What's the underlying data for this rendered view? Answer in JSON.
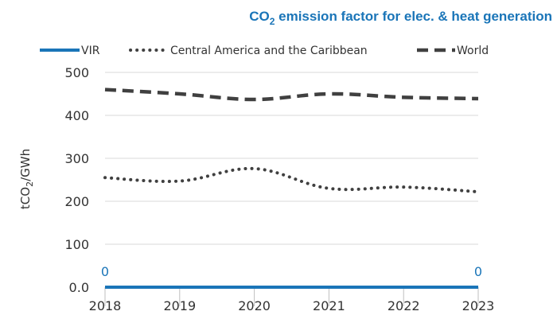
{
  "chart_data": {
    "type": "line",
    "title": "CO2 emission factor for elec. & heat generation",
    "title_main": "CO",
    "title_sub": "2",
    "title_rest": " emission factor for elec. & heat generation",
    "ylabel_main": "tCO",
    "ylabel_sub": "2",
    "ylabel_rest": "/GWh",
    "x_ticks": [
      "2018",
      "2019",
      "2020",
      "2021",
      "2022",
      "2023"
    ],
    "y_ticks": [
      "0.0",
      "100",
      "200",
      "300",
      "400",
      "500"
    ],
    "y_tick_values": [
      0,
      100,
      200,
      300,
      400,
      500
    ],
    "ylim": [
      0,
      500
    ],
    "xlim": [
      2018,
      2023
    ],
    "grid": true,
    "legend_position": "top",
    "series": [
      {
        "name": "VIR",
        "style": "solid",
        "color": "#1a75b8",
        "x": [
          2018,
          2019,
          2020,
          2021,
          2022,
          2023
        ],
        "values": [
          0,
          0,
          0,
          0,
          0,
          0
        ],
        "data_labels": [
          {
            "x": 2018,
            "text": "0"
          },
          {
            "x": 2023,
            "text": "0"
          }
        ]
      },
      {
        "name": "Central America and the Caribbean",
        "style": "dotted",
        "color": "#404040",
        "x": [
          2018,
          2019,
          2020,
          2021,
          2022,
          2023
        ],
        "values": [
          255,
          247,
          276,
          230,
          233,
          222
        ],
        "data_labels": []
      },
      {
        "name": "World",
        "style": "dashed",
        "color": "#404040",
        "x": [
          2018,
          2019,
          2020,
          2021,
          2022,
          2023
        ],
        "values": [
          460,
          450,
          437,
          450,
          442,
          439
        ],
        "data_labels": []
      }
    ]
  }
}
